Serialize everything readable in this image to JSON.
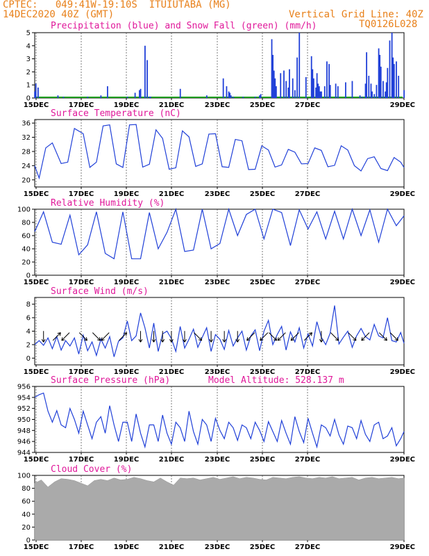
{
  "header": {
    "line1_left": "CPTEC:   049:41W-19:10S  ITUIUTABA (MG)",
    "line2_left": "14DEC2020 40Z (GMT)",
    "line2_right": "Vertical Grid Line: 40Z",
    "line3_right": "TQ0126L028"
  },
  "x_days": [
    "15DEC",
    "17DEC",
    "19DEC",
    "21DEC",
    "23DEC",
    "25DEC",
    "27DEC",
    "29DEC"
  ],
  "colors": {
    "line": "#2040d8",
    "snow": "#20a020",
    "title": "#e0189a",
    "header": "#e8801a",
    "cloud": "#aaaaaa"
  },
  "chart_data": [
    {
      "type": "bar",
      "title": "Precipitation (blue) and Snow Fall (green) (mm/h)",
      "yticks": [
        "0",
        "1",
        "2",
        "3",
        "4",
        "5"
      ],
      "ylim": [
        0,
        5
      ],
      "x_hours": [
        0,
        1,
        3,
        21,
        26,
        48,
        60,
        66,
        84,
        91,
        95,
        96,
        100,
        102,
        104,
        105,
        132,
        156,
        171,
        174,
        176,
        177,
        178,
        180,
        189,
        200,
        204,
        205,
        215,
        216,
        217,
        218,
        219,
        223,
        226,
        228,
        230,
        231,
        234,
        236,
        238,
        240,
        246,
        251,
        252,
        253,
        255,
        256,
        257,
        258,
        259,
        260,
        263,
        265,
        267,
        268,
        273,
        275,
        282,
        288,
        295,
        297,
        300,
        301,
        303,
        305,
        306,
        308,
        310,
        312,
        313,
        314,
        316,
        318,
        319,
        320,
        322,
        324,
        325,
        326,
        328,
        330,
        335
      ],
      "values": [
        0.5,
        1.1,
        0.8,
        0.2,
        0.1,
        0.1,
        0.2,
        0.9,
        0.1,
        0.4,
        0.6,
        0.7,
        4.0,
        2.9,
        0.1,
        0.1,
        0.7,
        0.2,
        1.5,
        0.9,
        0.5,
        0.4,
        0.2,
        0.1,
        0.1,
        0.1,
        0.2,
        0.3,
        4.5,
        3.3,
        2.1,
        1.5,
        0.9,
        1.9,
        2.1,
        1.3,
        0.8,
        2.2,
        1.5,
        0.6,
        3.1,
        5.0,
        1.6,
        3.2,
        2.2,
        1.5,
        0.8,
        1.9,
        1.1,
        0.9,
        0.5,
        0.5,
        0.9,
        2.8,
        2.6,
        1.0,
        1.1,
        0.9,
        1.2,
        1.3,
        0.2,
        0.1,
        1.1,
        3.5,
        1.7,
        1.1,
        0.5,
        0.3,
        1.0,
        3.8,
        3.3,
        2.4,
        1.3,
        0.5,
        1.2,
        2.3,
        4.4,
        5.0,
        3.1,
        2.6,
        2.8,
        1.7,
        0.6
      ]
    },
    {
      "type": "line",
      "title": "Surface Temperature (nC)",
      "yticks": [
        "20",
        "24",
        "28",
        "32",
        "36"
      ],
      "ylim": [
        18,
        37
      ],
      "x_hours": [
        0,
        4,
        10,
        16,
        24,
        30,
        36,
        44,
        50,
        56,
        62,
        68,
        74,
        80,
        86,
        92,
        98,
        104,
        110,
        116,
        122,
        128,
        134,
        140,
        146,
        152,
        158,
        164,
        170,
        176,
        182,
        188,
        194,
        200,
        206,
        212,
        218,
        224,
        230,
        236,
        242,
        248,
        254,
        260,
        266,
        272,
        278,
        284,
        290,
        296,
        302,
        308,
        314,
        320,
        326,
        332,
        335
      ],
      "values": [
        24.0,
        20.5,
        29.0,
        30.4,
        24.6,
        25.0,
        34.5,
        33.0,
        23.5,
        25.0,
        35.2,
        35.5,
        24.5,
        23.5,
        35.5,
        35.6,
        23.6,
        24.4,
        34.1,
        31.7,
        23.0,
        23.4,
        33.8,
        32.1,
        23.8,
        24.5,
        32.9,
        33.0,
        23.7,
        23.5,
        31.4,
        31.0,
        22.9,
        23.0,
        29.6,
        28.4,
        23.6,
        24.2,
        28.6,
        27.8,
        24.5,
        24.6,
        29.0,
        28.3,
        23.7,
        24.1,
        29.6,
        28.4,
        24.0,
        22.5,
        26.0,
        26.5,
        23.2,
        22.6,
        26.3,
        25.0,
        23.5
      ]
    },
    {
      "type": "line",
      "title": "Relative Humidity (%)",
      "yticks": [
        "0",
        "20",
        "40",
        "60",
        "80",
        "100"
      ],
      "ylim": [
        0,
        100
      ],
      "x_hours": [
        0,
        8,
        16,
        24,
        32,
        40,
        48,
        56,
        64,
        72,
        80,
        88,
        96,
        104,
        112,
        120,
        128,
        136,
        144,
        152,
        160,
        168,
        176,
        184,
        192,
        200,
        208,
        216,
        224,
        232,
        240,
        248,
        256,
        264,
        272,
        280,
        288,
        296,
        304,
        312,
        320,
        328,
        335
      ],
      "values": [
        66,
        96,
        50,
        47,
        91,
        31,
        46,
        96,
        33,
        25,
        96,
        25,
        25,
        95,
        40,
        65,
        100,
        36,
        38,
        100,
        40,
        48,
        100,
        60,
        92,
        100,
        55,
        100,
        95,
        45,
        99,
        70,
        96,
        55,
        97,
        55,
        100,
        60,
        99,
        50,
        100,
        75,
        90
      ]
    },
    {
      "type": "line",
      "title": "Surface Wind (m/s)",
      "yticks": [
        "0",
        "2",
        "4",
        "6",
        "8"
      ],
      "ylim": [
        -1,
        9
      ],
      "x_hours": [
        0,
        4,
        8,
        12,
        16,
        20,
        24,
        28,
        32,
        36,
        40,
        44,
        48,
        52,
        56,
        60,
        64,
        68,
        72,
        76,
        80,
        84,
        88,
        92,
        96,
        100,
        104,
        108,
        112,
        116,
        120,
        124,
        128,
        132,
        136,
        140,
        144,
        148,
        152,
        156,
        160,
        164,
        168,
        172,
        176,
        180,
        184,
        188,
        192,
        196,
        200,
        204,
        208,
        212,
        216,
        220,
        224,
        228,
        232,
        236,
        240,
        244,
        248,
        252,
        256,
        260,
        264,
        268,
        272,
        276,
        280,
        284,
        288,
        292,
        296,
        300,
        304,
        308,
        312,
        316,
        320,
        324,
        328,
        332,
        335
      ],
      "values": [
        2.0,
        2.6,
        1.9,
        3.0,
        1.4,
        3.2,
        1.2,
        2.6,
        1.8,
        3.0,
        0.6,
        3.4,
        1.1,
        2.4,
        0.4,
        2.8,
        1.5,
        3.2,
        0.2,
        2.5,
        3.0,
        5.5,
        2.6,
        3.3,
        6.7,
        4.5,
        1.5,
        5.2,
        1.0,
        3.6,
        4.0,
        2.9,
        1.0,
        4.7,
        1.5,
        2.8,
        4.3,
        1.6,
        3.1,
        4.5,
        1.0,
        3.5,
        2.8,
        1.3,
        4.1,
        1.8,
        3.0,
        4.0,
        1.2,
        3.3,
        4.2,
        1.1,
        4.0,
        5.6,
        2.0,
        3.5,
        4.7,
        1.2,
        3.9,
        2.4,
        4.5,
        1.5,
        3.6,
        1.8,
        5.4,
        3.1,
        2.0,
        3.7,
        7.8,
        2.1,
        3.1,
        4.0,
        1.6,
        3.3,
        4.4,
        3.2,
        2.7,
        5.0,
        3.3,
        3.0,
        6.0,
        2.6,
        2.4,
        3.8,
        2.2
      ],
      "arrow_x_hours": [
        8,
        20,
        28,
        44,
        56,
        64,
        80,
        96,
        108,
        116,
        124,
        136,
        148,
        160,
        172,
        184,
        196,
        208,
        216,
        224,
        236,
        248,
        260,
        272,
        288,
        300,
        316,
        326
      ],
      "arrow_dirs": [
        "S",
        "NE",
        "SW",
        "SE",
        "SE",
        "SW",
        "NE",
        "S",
        "S",
        "S",
        "S",
        "S",
        "SE",
        "S",
        "S",
        "S",
        "SW",
        "SW",
        "SE",
        "SW",
        "SW",
        "NE",
        "S",
        "SE",
        "SE",
        "SW",
        "SE",
        "SE"
      ]
    },
    {
      "type": "line",
      "title": "Surface Pressure (hPa)",
      "subtitle": "Model Altitude: 528.137 m",
      "yticks": [
        "944",
        "946",
        "948",
        "950",
        "952",
        "954",
        "956"
      ],
      "ylim": [
        944,
        956
      ],
      "x_hours": [
        0,
        4,
        8,
        12,
        16,
        20,
        24,
        28,
        32,
        36,
        40,
        44,
        48,
        52,
        56,
        60,
        64,
        68,
        72,
        76,
        80,
        84,
        88,
        92,
        96,
        100,
        104,
        108,
        112,
        116,
        120,
        124,
        128,
        132,
        136,
        140,
        144,
        148,
        152,
        156,
        160,
        164,
        168,
        172,
        176,
        180,
        184,
        188,
        192,
        196,
        200,
        204,
        208,
        212,
        216,
        220,
        224,
        228,
        232,
        236,
        240,
        244,
        248,
        252,
        256,
        260,
        264,
        268,
        272,
        276,
        280,
        284,
        288,
        292,
        296,
        300,
        304,
        308,
        312,
        316,
        320,
        324,
        328,
        332,
        335
      ],
      "values": [
        954.0,
        954.5,
        954.8,
        951.5,
        949.5,
        951.6,
        949.0,
        948.5,
        952.0,
        950.0,
        947.5,
        951.5,
        949.0,
        946.5,
        949.5,
        950.5,
        947.5,
        952.5,
        949.0,
        946.0,
        949.5,
        949.5,
        946.0,
        951.0,
        947.5,
        945.0,
        949.0,
        949.0,
        946.0,
        950.8,
        947.5,
        945.5,
        949.5,
        948.5,
        946.0,
        951.5,
        947.8,
        945.5,
        950.0,
        949.0,
        946.0,
        950.2,
        948.0,
        946.5,
        949.5,
        948.5,
        946.2,
        949.0,
        948.5,
        946.5,
        949.5,
        948.0,
        946.0,
        949.6,
        947.8,
        946.0,
        949.8,
        947.5,
        945.5,
        950.5,
        947.8,
        945.8,
        950.2,
        947.5,
        945.0,
        949.0,
        948.5,
        947.0,
        950.0,
        947.2,
        945.5,
        948.8,
        948.5,
        946.5,
        949.8,
        947.3,
        946.0,
        949.0,
        949.5,
        946.5,
        947.0,
        948.5,
        945.2,
        946.5,
        947.8
      ]
    },
    {
      "type": "area",
      "title": "Cloud Cover (%)",
      "yticks": [
        "0",
        "20",
        "40",
        "60",
        "80",
        "100"
      ],
      "ylim": [
        0,
        100
      ],
      "x_hours": [
        0,
        6,
        12,
        18,
        24,
        30,
        36,
        42,
        48,
        54,
        60,
        66,
        72,
        78,
        84,
        90,
        96,
        102,
        108,
        114,
        120,
        126,
        132,
        138,
        144,
        150,
        156,
        162,
        168,
        174,
        180,
        186,
        192,
        198,
        204,
        210,
        216,
        222,
        228,
        234,
        240,
        246,
        252,
        258,
        264,
        270,
        276,
        282,
        288,
        294,
        300,
        306,
        312,
        318,
        324,
        330,
        335
      ],
      "values": [
        88,
        93,
        82,
        90,
        95,
        94,
        92,
        88,
        84,
        92,
        94,
        92,
        96,
        93,
        94,
        97,
        95,
        92,
        90,
        96,
        90,
        85,
        96,
        95,
        96,
        93,
        95,
        97,
        94,
        96,
        98,
        95,
        97,
        96,
        94,
        93,
        97,
        96,
        95,
        97,
        98,
        96,
        95,
        97,
        96,
        98,
        95,
        96,
        97,
        93,
        96,
        97,
        95,
        96,
        97,
        95,
        96
      ]
    }
  ]
}
